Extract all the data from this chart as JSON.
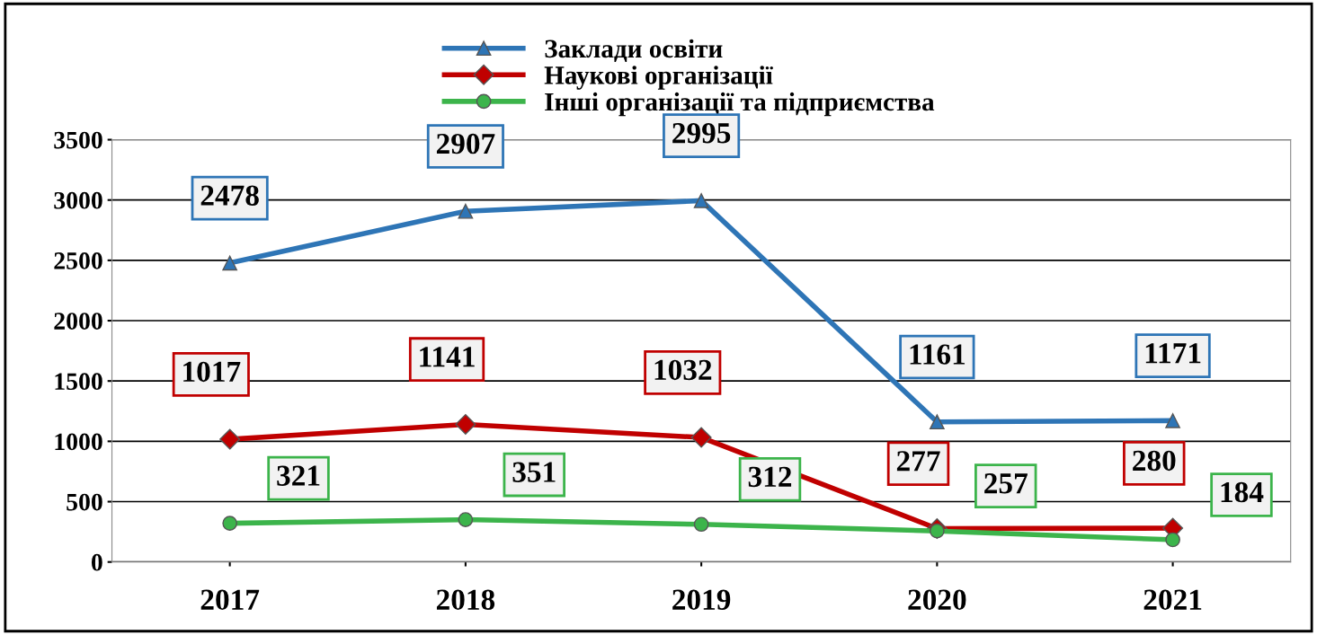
{
  "chart_data": {
    "type": "line",
    "categories": [
      "2017",
      "2018",
      "2019",
      "2020",
      "2021"
    ],
    "series": [
      {
        "name": "Заклади освіти",
        "color": "#2e75b6",
        "marker": "triangle",
        "values": [
          2478,
          2907,
          2995,
          1161,
          1171
        ]
      },
      {
        "name": "Наукові організації",
        "color": "#c00000",
        "marker": "diamond",
        "values": [
          1017,
          1141,
          1032,
          277,
          280
        ]
      },
      {
        "name": "Інші організації та підприємства",
        "color": "#3cb44b",
        "marker": "circle",
        "values": [
          321,
          351,
          312,
          257,
          184
        ]
      }
    ],
    "ylim": [
      0,
      3500
    ],
    "yticks": [
      0,
      500,
      1000,
      1500,
      2000,
      2500,
      3000,
      3500
    ],
    "grid": "y",
    "legend": "top",
    "data_labels": true
  }
}
